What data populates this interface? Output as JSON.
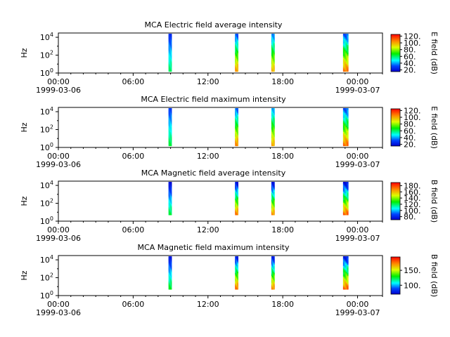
{
  "chart_data": [
    {
      "type": "heatmap",
      "title": "MCA  Electric field average intensity",
      "ylabel": "Hz",
      "y_scale": "log",
      "y_ticks": [
        {
          "base": "10",
          "exp": "0"
        },
        {
          "base": "10",
          "exp": "2"
        },
        {
          "base": "10",
          "exp": "4"
        }
      ],
      "ylim_hz": [
        1,
        30000
      ],
      "colorbar": {
        "label": "E field (dB)",
        "range": [
          15,
          125
        ],
        "ticks": [
          "20.",
          "40.",
          "60.",
          "80.",
          "100.",
          "120."
        ],
        "tick_values": [
          20,
          40,
          60,
          80,
          100,
          120
        ]
      },
      "x_ticks": [
        "00:00",
        "06:00",
        "12:00",
        "18:00",
        "00:00"
      ],
      "x_dates": [
        "1999-03-06",
        "1999-03-07"
      ],
      "xlim": [
        "1999-03-06T00:00",
        "1999-03-07T02:00"
      ],
      "bursts": [
        {
          "start": "08:50",
          "end": "09:05",
          "ylo_hz": 1.5,
          "yhi_hz": 25000,
          "low_db": 62,
          "high_db": 25
        },
        {
          "start": "14:10",
          "end": "14:25",
          "ylo_hz": 1.5,
          "yhi_hz": 25000,
          "low_db": 105,
          "high_db": 30
        },
        {
          "start": "17:05",
          "end": "17:20",
          "ylo_hz": 1.5,
          "yhi_hz": 25000,
          "low_db": 100,
          "high_db": 35
        },
        {
          "start": "22:50",
          "end": "23:15",
          "ylo_hz": 1.5,
          "yhi_hz": 25000,
          "low_db": 110,
          "high_db": 30
        }
      ]
    },
    {
      "type": "heatmap",
      "title": "MCA  Electric field maximum intensity",
      "ylabel": "Hz",
      "y_scale": "log",
      "y_ticks": [
        {
          "base": "10",
          "exp": "0"
        },
        {
          "base": "10",
          "exp": "2"
        },
        {
          "base": "10",
          "exp": "4"
        }
      ],
      "ylim_hz": [
        1,
        30000
      ],
      "colorbar": {
        "label": "E field (dB)",
        "range": [
          15,
          125
        ],
        "ticks": [
          "20.",
          "40.",
          "60.",
          "80.",
          "100.",
          "120."
        ],
        "tick_values": [
          20,
          40,
          60,
          80,
          100,
          120
        ]
      },
      "x_ticks": [
        "00:00",
        "06:00",
        "12:00",
        "18:00",
        "00:00"
      ],
      "x_dates": [
        "1999-03-06",
        "1999-03-07"
      ],
      "xlim": [
        "1999-03-06T00:00",
        "1999-03-07T02:00"
      ],
      "bursts": [
        {
          "start": "08:50",
          "end": "09:05",
          "ylo_hz": 1.5,
          "yhi_hz": 25000,
          "low_db": 65,
          "high_db": 28
        },
        {
          "start": "14:10",
          "end": "14:25",
          "ylo_hz": 1.5,
          "yhi_hz": 25000,
          "low_db": 108,
          "high_db": 32
        },
        {
          "start": "17:05",
          "end": "17:20",
          "ylo_hz": 1.5,
          "yhi_hz": 25000,
          "low_db": 102,
          "high_db": 38
        },
        {
          "start": "22:50",
          "end": "23:15",
          "ylo_hz": 1.5,
          "yhi_hz": 25000,
          "low_db": 112,
          "high_db": 30
        }
      ]
    },
    {
      "type": "heatmap",
      "title": "MCA  Magnetic field average intensity",
      "ylabel": "Hz",
      "y_scale": "log",
      "y_ticks": [
        {
          "base": "10",
          "exp": "0"
        },
        {
          "base": "10",
          "exp": "2"
        },
        {
          "base": "10",
          "exp": "4"
        }
      ],
      "ylim_hz": [
        1,
        30000
      ],
      "colorbar": {
        "label": "B field (dB)",
        "range": [
          70,
          190
        ],
        "ticks": [
          "80.",
          "100.",
          "120.",
          "140.",
          "160.",
          "180."
        ],
        "tick_values": [
          80,
          100,
          120,
          140,
          160,
          180
        ]
      },
      "x_ticks": [
        "00:00",
        "06:00",
        "12:00",
        "18:00",
        "00:00"
      ],
      "x_dates": [
        "1999-03-06",
        "1999-03-07"
      ],
      "xlim": [
        "1999-03-06T00:00",
        "1999-03-07T02:00"
      ],
      "bursts": [
        {
          "start": "08:50",
          "end": "09:05",
          "ylo_hz": 5,
          "yhi_hz": 25000,
          "low_db": 125,
          "high_db": 72
        },
        {
          "start": "14:10",
          "end": "14:25",
          "ylo_hz": 5,
          "yhi_hz": 25000,
          "low_db": 175,
          "high_db": 72
        },
        {
          "start": "17:05",
          "end": "17:20",
          "ylo_hz": 5,
          "yhi_hz": 25000,
          "low_db": 170,
          "high_db": 72
        },
        {
          "start": "22:50",
          "end": "23:15",
          "ylo_hz": 5,
          "yhi_hz": 25000,
          "low_db": 178,
          "high_db": 72
        }
      ]
    },
    {
      "type": "heatmap",
      "title": "MCA  Magnetic field maximum intensity",
      "ylabel": "Hz",
      "y_scale": "log",
      "y_ticks": [
        {
          "base": "10",
          "exp": "0"
        },
        {
          "base": "10",
          "exp": "2"
        },
        {
          "base": "10",
          "exp": "4"
        }
      ],
      "ylim_hz": [
        1,
        30000
      ],
      "colorbar": {
        "label": "B field (dB)",
        "range": [
          70,
          195
        ],
        "ticks": [
          "100.",
          "150."
        ],
        "tick_values": [
          100,
          150
        ]
      },
      "x_ticks": [
        "00:00",
        "06:00",
        "12:00",
        "18:00",
        "00:00"
      ],
      "x_dates": [
        "1999-03-06",
        "1999-03-07"
      ],
      "xlim": [
        "1999-03-06T00:00",
        "1999-03-07T02:00"
      ],
      "bursts": [
        {
          "start": "08:50",
          "end": "09:05",
          "ylo_hz": 5,
          "yhi_hz": 25000,
          "low_db": 130,
          "high_db": 75
        },
        {
          "start": "14:10",
          "end": "14:25",
          "ylo_hz": 5,
          "yhi_hz": 25000,
          "low_db": 180,
          "high_db": 75
        },
        {
          "start": "17:05",
          "end": "17:20",
          "ylo_hz": 5,
          "yhi_hz": 25000,
          "low_db": 175,
          "high_db": 75
        },
        {
          "start": "22:50",
          "end": "23:15",
          "ylo_hz": 5,
          "yhi_hz": 25000,
          "low_db": 182,
          "high_db": 75
        }
      ]
    }
  ]
}
